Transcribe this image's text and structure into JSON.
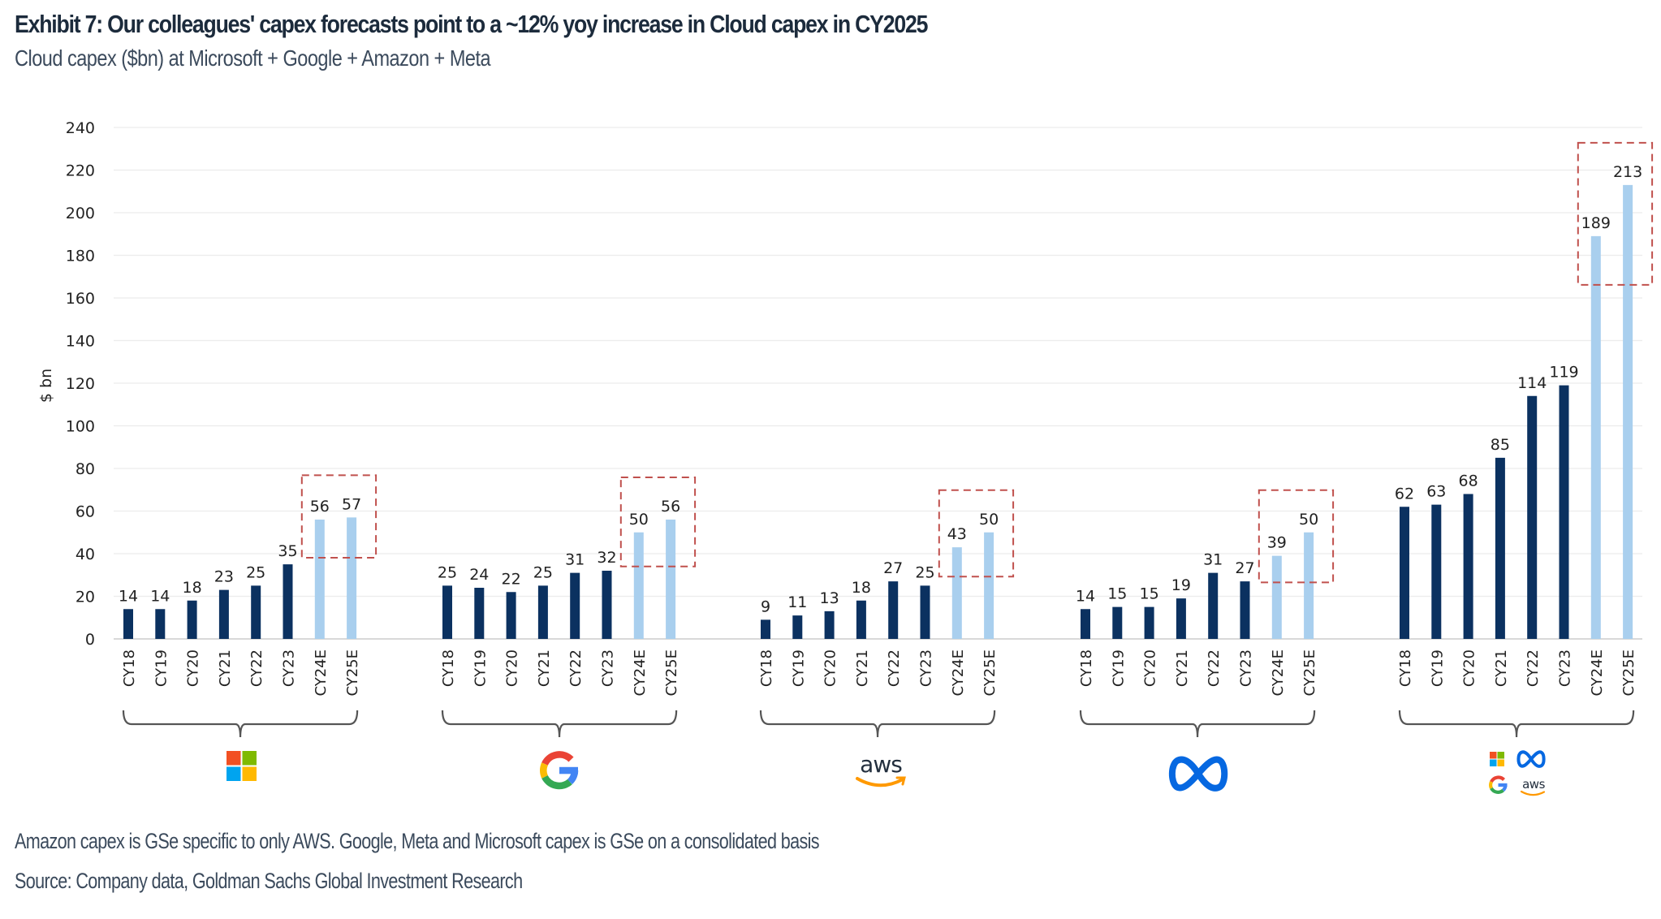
{
  "header": {
    "title": "Exhibit 7: Our colleagues' capex forecasts point to a ~12% yoy increase in Cloud capex in CY2025",
    "subtitle": "Cloud capex ($bn) at Microsoft + Google + Amazon + Meta"
  },
  "footer": {
    "note": "Amazon capex is GSe specific to only AWS. Google, Meta and Microsoft capex is GSe on a consolidated basis",
    "source": "Source: Company data, Goldman Sachs Global Investment Research"
  },
  "colors": {
    "actual": "#0b3160",
    "estimate": "#a9cfee",
    "highlight_box": "#c0504d",
    "gridline": "#ececec",
    "brace": "#555555"
  },
  "chart_data": {
    "type": "bar",
    "title": "Exhibit 7: Our colleagues' capex forecasts point to a ~12% yoy increase in Cloud capex in CY2025",
    "subtitle": "Cloud capex ($bn) at Microsoft + Google + Amazon + Meta",
    "xlabel": "",
    "ylabel": "$ bn",
    "ylim": [
      0,
      240
    ],
    "yticks": [
      "0",
      "20",
      "40",
      "60",
      "80",
      "100",
      "120",
      "140",
      "160",
      "180",
      "200",
      "220",
      "240"
    ],
    "grid": true,
    "categories": [
      "CY18",
      "CY19",
      "CY20",
      "CY21",
      "CY22",
      "CY23",
      "CY24E",
      "CY25E"
    ],
    "estimate_categories": [
      "CY24E",
      "CY25E"
    ],
    "series": [
      {
        "name": "Microsoft",
        "icon": "microsoft-logo-icon",
        "values": [
          14,
          14,
          18,
          23,
          25,
          35,
          56,
          57
        ]
      },
      {
        "name": "Google",
        "icon": "google-logo-icon",
        "values": [
          25,
          24,
          22,
          25,
          31,
          32,
          50,
          56
        ]
      },
      {
        "name": "Amazon (AWS)",
        "icon": "aws-logo-icon",
        "values": [
          9,
          11,
          13,
          18,
          27,
          25,
          43,
          50
        ]
      },
      {
        "name": "Meta",
        "icon": "meta-logo-icon",
        "values": [
          14,
          15,
          15,
          19,
          31,
          27,
          39,
          50
        ]
      },
      {
        "name": "Microsoft + Google + Amazon + Meta",
        "icon": "combined-logos-icon",
        "values": [
          62,
          63,
          68,
          85,
          114,
          119,
          189,
          213
        ]
      }
    ],
    "annotations": [
      "Dashed box highlighting CY24E and CY25E estimates in each group"
    ]
  }
}
